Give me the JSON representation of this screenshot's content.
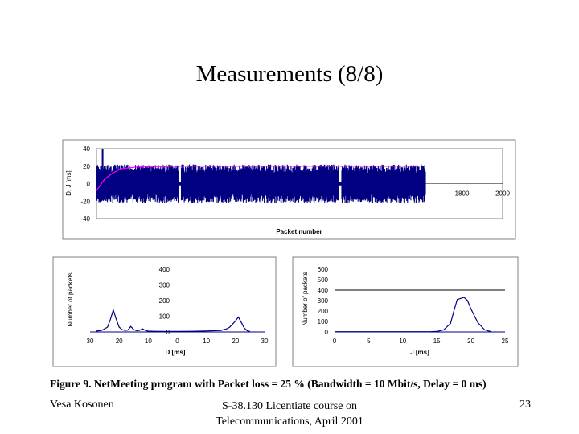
{
  "slide": {
    "title": "Measurements (8/8)",
    "caption": "Figure 9. NetMeeting program with Packet loss = 25 %  (Bandwidth = 10 Mbit/s, Delay = 0 ms)",
    "footer_left": "Vesa Kosonen",
    "footer_center_line1": "S-38.130 Licentiate course on",
    "footer_center_line2": "Telecommunications, April 2001",
    "page_number": "23"
  },
  "colors": {
    "series_dark": "#000080",
    "series_pink": "#ff00ff",
    "line_black": "#000000",
    "grid": "#c0c0c0"
  },
  "chart_data": [
    {
      "type": "line",
      "xlabel": "Packet number",
      "ylabel": "D, J [ms]",
      "xlim": [
        0,
        2000
      ],
      "ylim": [
        -40,
        40
      ],
      "x_ticks": [
        {
          "v": 1800,
          "label": "1800"
        },
        {
          "v": 2000,
          "label": "2000"
        }
      ],
      "y_ticks": [
        {
          "v": 40,
          "label": "40"
        },
        {
          "v": 20,
          "label": "20"
        },
        {
          "v": 0,
          "label": "0"
        },
        {
          "v": -20,
          "label": "-20"
        },
        {
          "v": -40,
          "label": "-40"
        }
      ],
      "series": [
        {
          "role": "delay",
          "color": "#000080",
          "x_end": 1620,
          "band": [
            -22,
            22
          ],
          "spikes": [
            {
              "x": 30,
              "y": 40
            }
          ],
          "gaps": [
            410,
            1200
          ]
        },
        {
          "role": "jitter",
          "color": "#ff00ff",
          "x": [
            0,
            40,
            80,
            120,
            200,
            400,
            800,
            1200,
            1600
          ],
          "y": [
            -8,
            5,
            12,
            17,
            19,
            20,
            20,
            20,
            20
          ]
        }
      ]
    },
    {
      "type": "line",
      "xlabel": "D [ms]",
      "ylabel": "Number of packets",
      "xlim": [
        -30,
        30
      ],
      "ylim": [
        0,
        400
      ],
      "x_ticks": [
        {
          "v": -30,
          "label": "30"
        },
        {
          "v": -20,
          "label": "20"
        },
        {
          "v": -10,
          "label": "10"
        },
        {
          "v": 0,
          "label": "0"
        },
        {
          "v": 10,
          "label": "10"
        },
        {
          "v": 20,
          "label": "20"
        },
        {
          "v": 30,
          "label": "30"
        }
      ],
      "y_ticks": [
        {
          "v": 400,
          "label": "400"
        },
        {
          "v": 300,
          "label": "300"
        },
        {
          "v": 200,
          "label": "200"
        },
        {
          "v": 100,
          "label": "100"
        },
        {
          "v": 0,
          "label": "0"
        }
      ],
      "x": [
        -28,
        -26,
        -24,
        -23,
        -22,
        -21,
        -20,
        -19,
        -18,
        -17,
        -16,
        -15,
        -14,
        -13,
        -12,
        -11,
        -10,
        -8,
        -5,
        0,
        5,
        10,
        13,
        15,
        17,
        18,
        19,
        20,
        21,
        22,
        23,
        24,
        25
      ],
      "y": [
        5,
        10,
        30,
        80,
        140,
        80,
        30,
        15,
        10,
        12,
        35,
        15,
        8,
        10,
        20,
        10,
        5,
        4,
        3,
        3,
        4,
        6,
        8,
        10,
        20,
        30,
        50,
        70,
        95,
        60,
        25,
        8,
        3
      ]
    },
    {
      "type": "line",
      "xlabel": "J [ms]",
      "ylabel": "Number of packets",
      "xlim": [
        0,
        25
      ],
      "ylim": [
        0,
        600
      ],
      "x_ticks": [
        {
          "v": 0,
          "label": "0"
        },
        {
          "v": 5,
          "label": "5"
        },
        {
          "v": 10,
          "label": "10"
        },
        {
          "v": 15,
          "label": "15"
        },
        {
          "v": 20,
          "label": "20"
        },
        {
          "v": 25,
          "label": "25"
        }
      ],
      "y_ticks": [
        {
          "v": 600,
          "label": "600"
        },
        {
          "v": 500,
          "label": "500"
        },
        {
          "v": 400,
          "label": "400"
        },
        {
          "v": 300,
          "label": "300"
        },
        {
          "v": 200,
          "label": "200"
        },
        {
          "v": 100,
          "label": "100"
        },
        {
          "v": 0,
          "label": "0"
        }
      ],
      "reference_line": 400,
      "x": [
        0,
        10,
        14,
        15,
        16,
        17,
        17.5,
        18,
        19,
        19.5,
        20,
        21,
        22,
        23
      ],
      "y": [
        2,
        2,
        2,
        5,
        20,
        80,
        200,
        310,
        330,
        300,
        220,
        90,
        20,
        2
      ]
    }
  ]
}
